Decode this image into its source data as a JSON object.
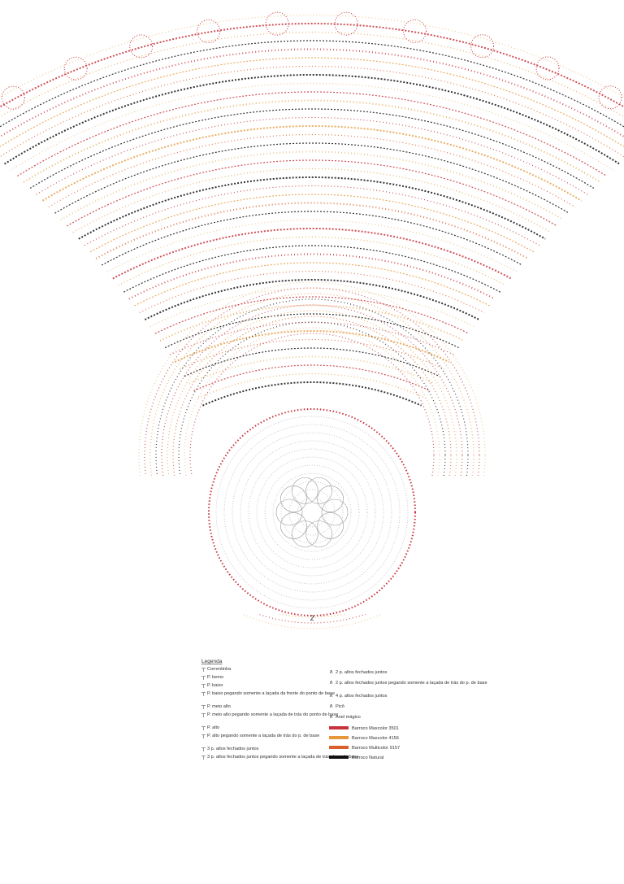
{
  "diagram": {
    "page_number": "2"
  },
  "legend": {
    "title": "Legenda",
    "left": [
      "Correntinha",
      "P. bemo",
      "P. baixo",
      "P. baixo pegando somente a laçada da frente do ponto de base",
      "P. meio alto",
      "P. meio alto pegando somente a laçada de trás do ponto de base",
      "P. alto",
      "P. alto pegando somente a laçada de trás do p. de base",
      "3 p. altos fechados juntos",
      "3 p. altos fechados juntos pegando somente a laçada de trás do p. de base"
    ],
    "right": [
      "2 p. altos fechados juntos",
      "2 p. altos fechados juntos pegando somente a laçada de trás do p. de base",
      "4 p. altos fechados juntos",
      "Picô",
      "Anel mágico"
    ],
    "colors": [
      {
        "name": "Barroco Maxcolor 3501",
        "color": "#c8323a"
      },
      {
        "name": "Barroco Maxcolor 4156",
        "color": "#e8963c"
      },
      {
        "name": "Barroco Multicolor 9157",
        "color": "#d9602a"
      },
      {
        "name": "Barroco Natural",
        "color": "#111111"
      }
    ]
  }
}
